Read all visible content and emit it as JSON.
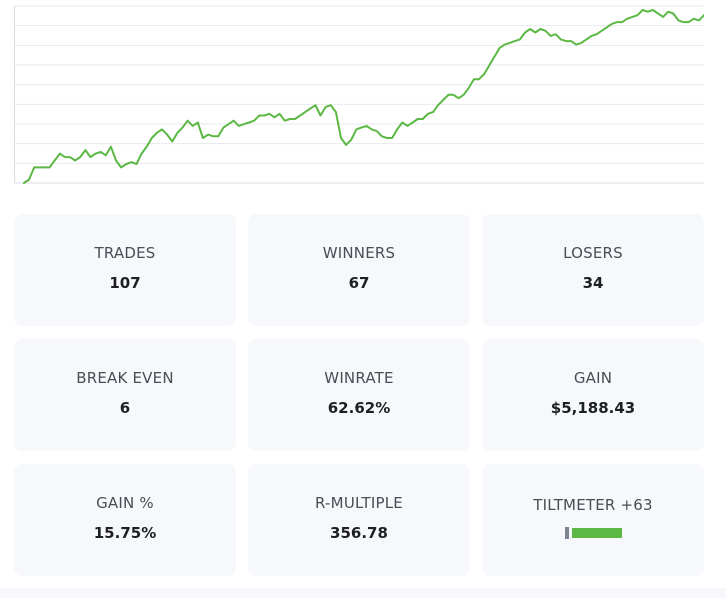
{
  "colors": {
    "line": "#5cb845",
    "card_bg": "#f7f8fc",
    "tilt_negative": "#7e8592",
    "tilt_positive": "#5cb845"
  },
  "chart_data": {
    "type": "line",
    "title": "",
    "xlabel": "",
    "ylabel": "",
    "grid": true,
    "ylim": [
      0,
      100
    ],
    "series": [
      {
        "values": [
          0,
          2,
          9,
          9,
          9,
          9,
          13,
          17,
          15,
          15,
          13,
          15,
          19,
          15,
          17,
          18,
          16,
          21,
          13,
          9,
          11,
          12,
          11,
          17,
          21,
          26,
          29,
          31,
          28,
          24,
          29,
          32,
          36,
          33,
          35,
          26,
          28,
          27,
          27,
          32,
          34,
          36,
          33,
          34,
          35,
          36,
          39,
          39,
          40,
          38,
          40,
          36,
          37,
          37,
          39,
          41,
          43,
          45,
          39,
          44,
          45,
          41,
          26,
          22,
          25,
          31,
          32,
          33,
          31,
          30,
          27,
          26,
          26,
          31,
          35,
          33,
          35,
          37,
          37,
          40,
          41,
          45,
          48,
          51,
          51,
          49,
          51,
          55,
          60,
          60,
          63,
          68,
          73,
          78,
          80,
          81,
          82,
          83,
          87,
          89,
          87,
          89,
          88,
          85,
          86,
          83,
          82,
          82,
          80,
          81,
          83,
          85,
          86,
          88,
          90,
          92,
          93,
          93,
          95,
          96,
          97,
          100,
          99,
          100,
          98,
          96,
          99,
          98,
          94,
          93,
          93,
          95,
          94,
          97
        ]
      }
    ]
  },
  "stats": {
    "trades": {
      "label": "TRADES",
      "value": "107"
    },
    "winners": {
      "label": "WINNERS",
      "value": "67"
    },
    "losers": {
      "label": "LOSERS",
      "value": "34"
    },
    "break_even": {
      "label": "BREAK EVEN",
      "value": "6"
    },
    "winrate": {
      "label": "WINRATE",
      "value": "62.62%"
    },
    "gain": {
      "label": "GAIN",
      "value": "$5,188.43"
    },
    "gain_pct": {
      "label": "GAIN %",
      "value": "15.75%"
    },
    "r_multiple": {
      "label": "R-MULTIPLE",
      "value": "356.78"
    },
    "tiltmeter": {
      "label": "TILTMETER +63",
      "positive": 63
    }
  }
}
